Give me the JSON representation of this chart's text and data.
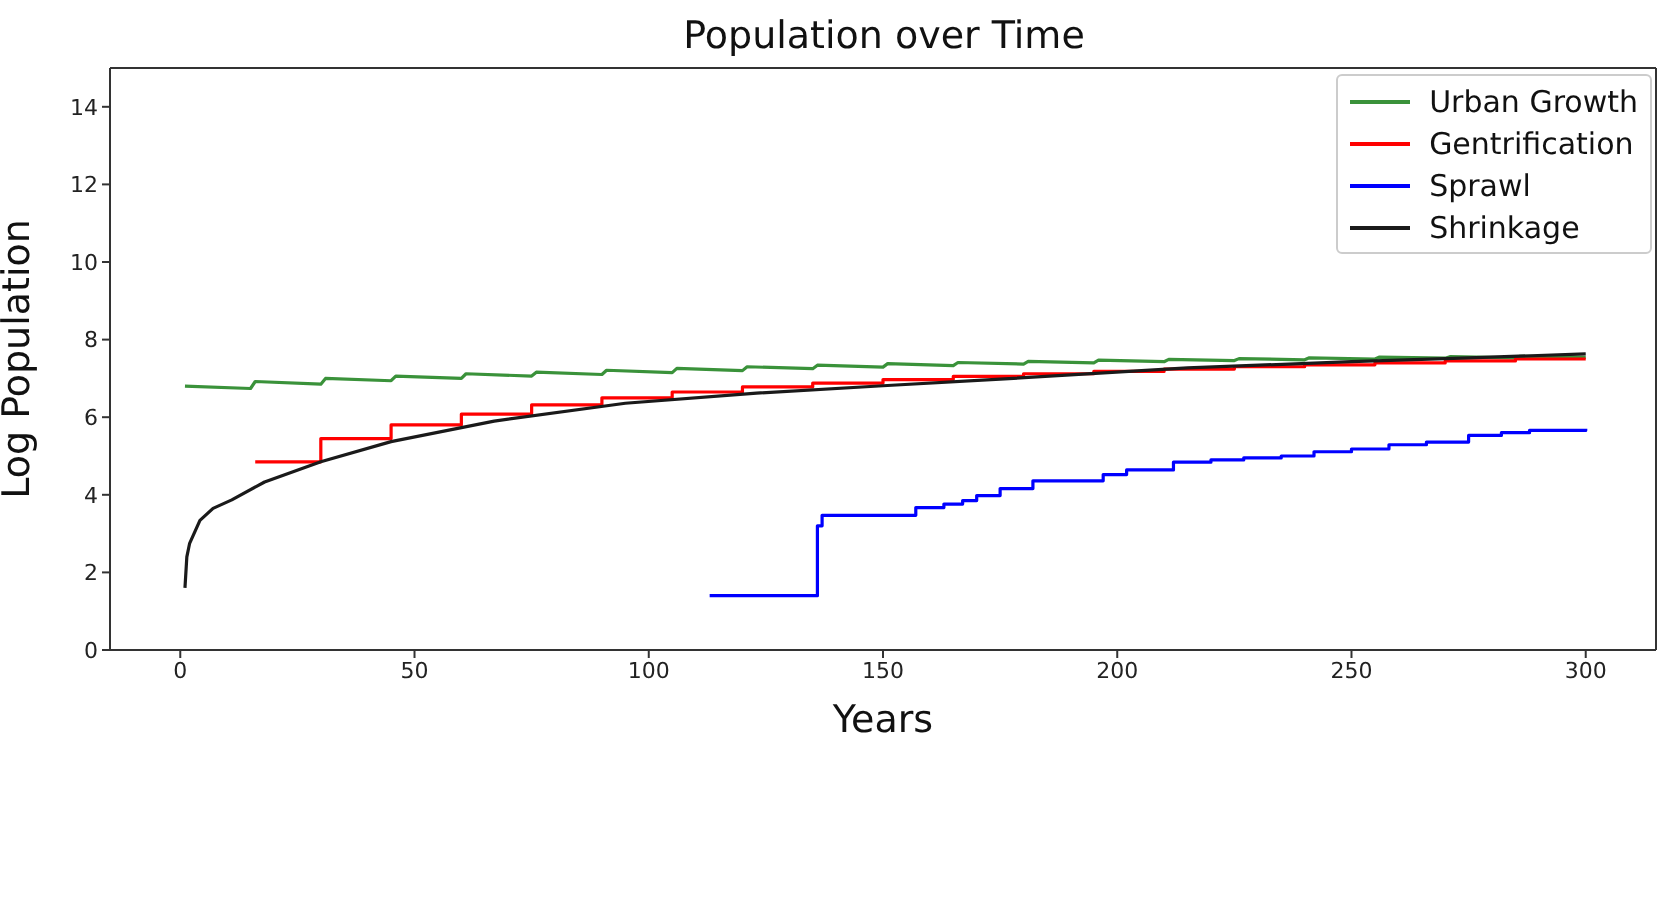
{
  "chart_data": {
    "type": "line",
    "title": "Population over Time",
    "xlabel": "Years",
    "ylabel": "Log Population",
    "xlim": [
      -15,
      315
    ],
    "xticks": [
      0,
      50,
      100,
      150,
      200,
      250,
      300
    ],
    "ylim": [
      0,
      15
    ],
    "yticks": [
      0,
      2,
      4,
      6,
      8,
      10,
      12,
      14
    ],
    "legend": "top right",
    "series": [
      {
        "name": "Urban Growth",
        "color": "#3a923a",
        "x": [
          1,
          15,
          16,
          30,
          31,
          45,
          46,
          60,
          61,
          75,
          76,
          90,
          91,
          105,
          106,
          120,
          121,
          135,
          136,
          150,
          151,
          165,
          166,
          180,
          181,
          195,
          196,
          210,
          211,
          225,
          226,
          240,
          241,
          255,
          256,
          270,
          271,
          285,
          286,
          300
        ],
        "values": [
          6.8,
          6.74,
          6.92,
          6.85,
          7.0,
          6.94,
          7.06,
          7.0,
          7.12,
          7.06,
          7.16,
          7.1,
          7.21,
          7.15,
          7.26,
          7.2,
          7.3,
          7.25,
          7.34,
          7.29,
          7.38,
          7.33,
          7.41,
          7.37,
          7.44,
          7.4,
          7.47,
          7.43,
          7.49,
          7.46,
          7.51,
          7.48,
          7.53,
          7.5,
          7.55,
          7.52,
          7.56,
          7.53,
          7.57,
          7.54
        ]
      },
      {
        "name": "Gentrification",
        "type": "step",
        "color": "#ff0000",
        "x": [
          16,
          30,
          45,
          60,
          75,
          90,
          105,
          120,
          135,
          150,
          165,
          180,
          195,
          210,
          225,
          240,
          255,
          270,
          285,
          300
        ],
        "values": [
          4.85,
          5.45,
          5.8,
          6.08,
          6.32,
          6.5,
          6.65,
          6.78,
          6.88,
          6.97,
          7.05,
          7.12,
          7.18,
          7.24,
          7.3,
          7.35,
          7.4,
          7.45,
          7.5,
          7.5
        ]
      },
      {
        "name": "Sprawl",
        "type": "step",
        "color": "#0000ff",
        "x": [
          113,
          136,
          137,
          157,
          163,
          167,
          170,
          175,
          182,
          197,
          202,
          212,
          220,
          227,
          235,
          242,
          250,
          258,
          266,
          275,
          282,
          288,
          300
        ],
        "values": [
          1.4,
          3.2,
          3.47,
          3.67,
          3.76,
          3.85,
          3.98,
          4.16,
          4.36,
          4.52,
          4.64,
          4.84,
          4.9,
          4.95,
          5.0,
          5.11,
          5.18,
          5.29,
          5.36,
          5.53,
          5.6,
          5.66,
          5.7
        ]
      },
      {
        "name": "Shrinkage",
        "color": "#1a1a1a",
        "x": [
          1,
          1.4,
          2,
          4.2,
          7,
          11,
          18,
          30,
          45,
          67,
          95,
          123,
          150,
          175,
          215,
          250,
          275,
          300
        ],
        "values": [
          1.6,
          2.4,
          2.75,
          3.34,
          3.65,
          3.87,
          4.33,
          4.85,
          5.37,
          5.9,
          6.36,
          6.62,
          6.81,
          6.98,
          7.27,
          7.43,
          7.53,
          7.63
        ]
      }
    ]
  }
}
